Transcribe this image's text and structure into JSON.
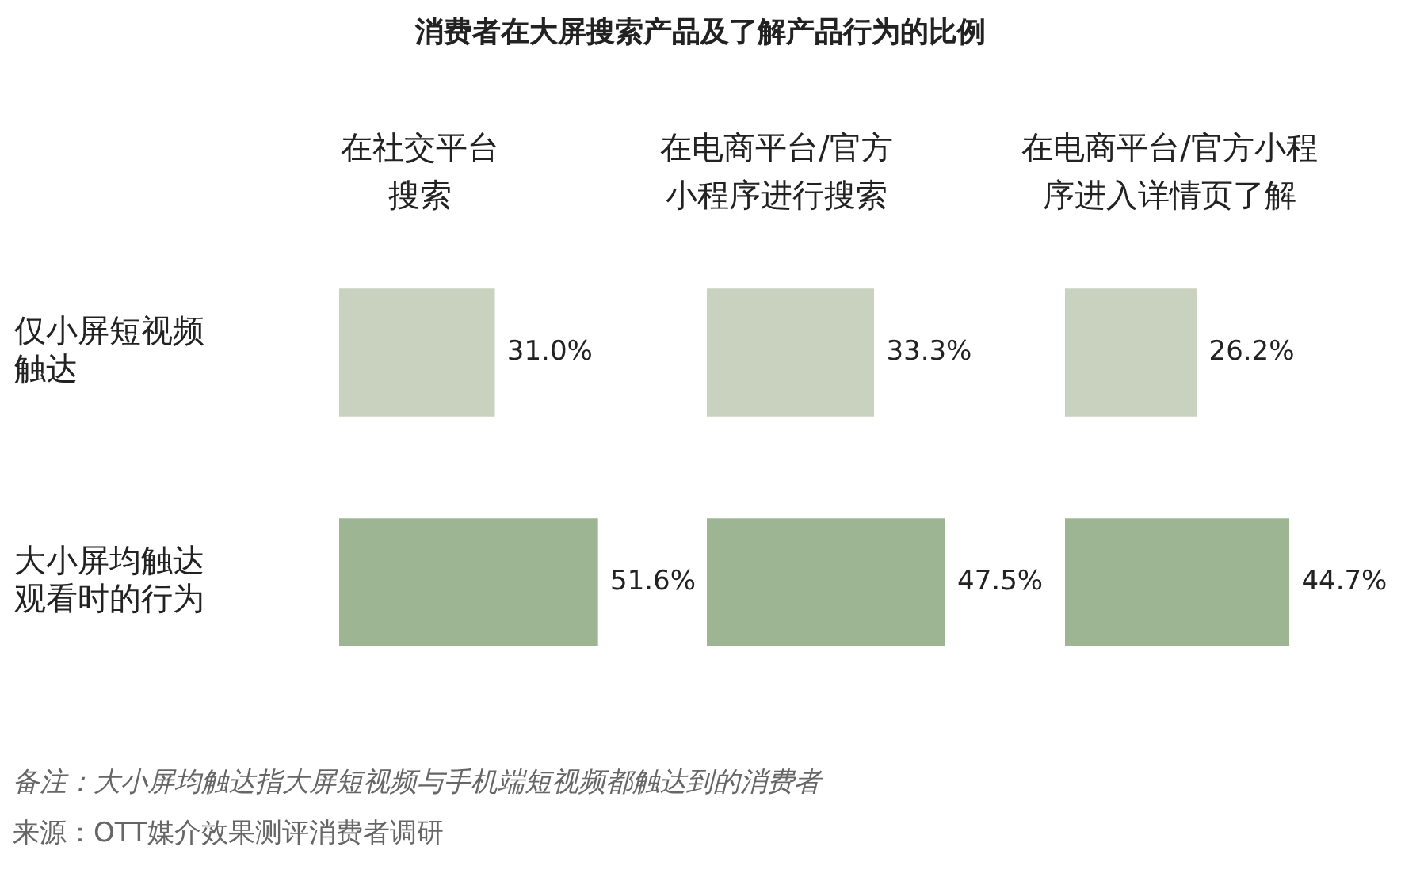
{
  "chart_data": [
    {
      "type": "other",
      "title": "消费者在大屏搜索产品及了解产品行为的比例"
    },
    {
      "type": "bar",
      "orientation": "horizontal",
      "title": "在社交平台搜索",
      "categories": [
        "仅小屏短视频触达",
        "大小屏均触达观看时的行为"
      ],
      "values": [
        31.0,
        51.6
      ],
      "colors": [
        "#c9d1bf",
        "#9db593"
      ],
      "value_labels": [
        "31.0%",
        "51.6%"
      ],
      "tick_labels": "y"
    },
    {
      "type": "bar",
      "orientation": "horizontal",
      "title": "在电商平台/官方小程序进行搜索",
      "values": [
        33.3,
        47.5
      ],
      "colors": [
        "#c9d1bf",
        "#9db593"
      ],
      "value_labels": [
        "33.3%",
        "47.5%"
      ],
      "tick_labels": false
    },
    {
      "type": "bar",
      "orientation": "horizontal",
      "title": "在电商平台/官方小程序进入详情页了解",
      "values": [
        26.2,
        44.7
      ],
      "colors": [
        "#c9d1bf",
        "#9db593"
      ],
      "value_labels": [
        "26.2%",
        "44.7%"
      ],
      "tick_labels": false
    },
    {
      "type": "other",
      "annotations": [
        "备注：大小屏均触达指大屏短视频与手机端短视频都触达到的消费者",
        "来源：OTT媒介效果测评消费者调研"
      ]
    }
  ]
}
